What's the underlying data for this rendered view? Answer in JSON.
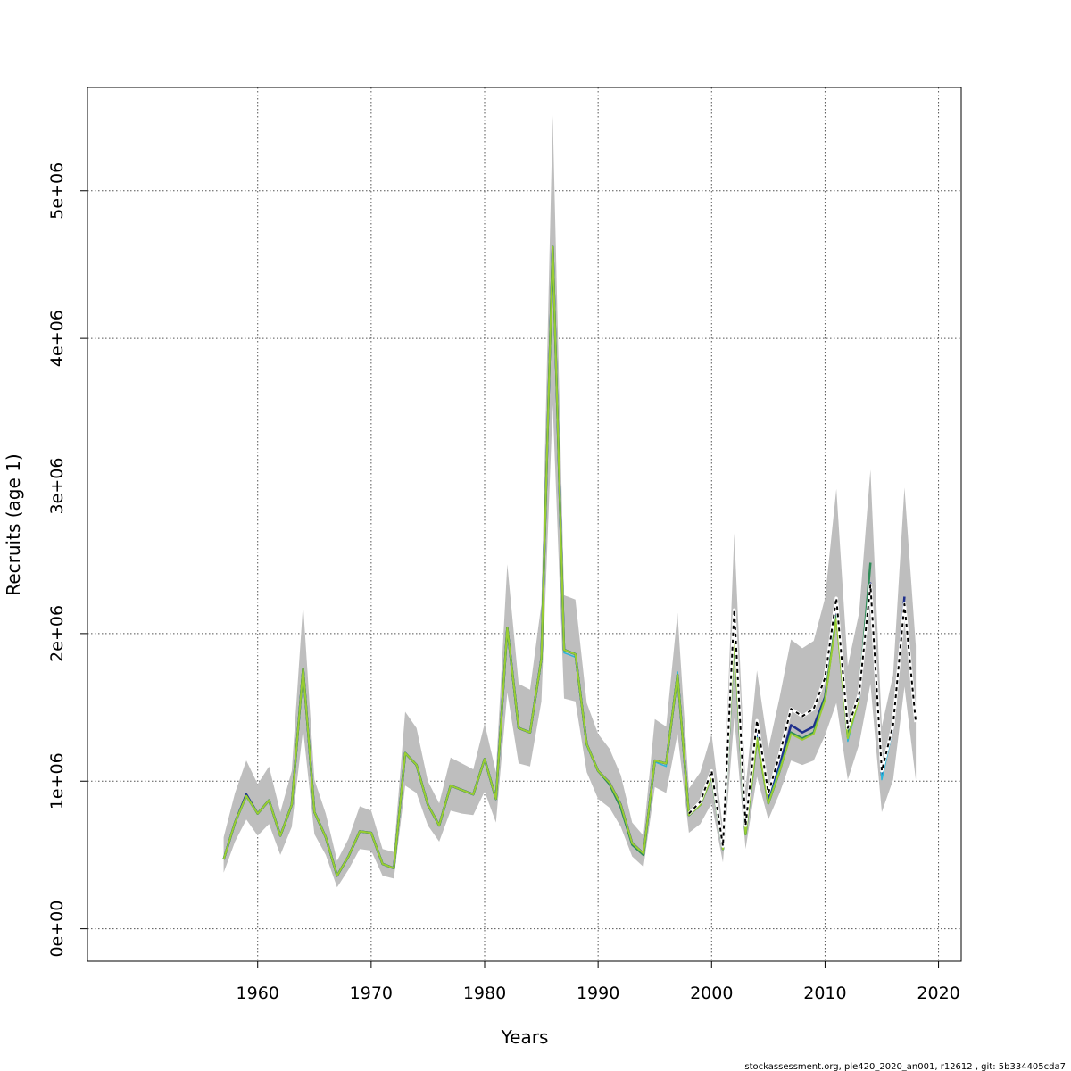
{
  "chart_data": {
    "type": "line",
    "title": "",
    "xlabel": "Years",
    "ylabel": "Recruits (age 1)",
    "xlim": [
      1945,
      2022
    ],
    "ylim": [
      -220000,
      5700000
    ],
    "grid": true,
    "x_ticks": [
      1960,
      1970,
      1980,
      1990,
      2000,
      2010,
      2020
    ],
    "x_tick_labels": [
      "1960",
      "1970",
      "1980",
      "1990",
      "2000",
      "2010",
      "2020"
    ],
    "y_ticks": [
      0,
      1000000,
      2000000,
      3000000,
      4000000,
      5000000
    ],
    "y_tick_labels": [
      "0e+00",
      "1e+06",
      "2e+06",
      "3e+06",
      "4e+06",
      "5e+06"
    ],
    "band": {
      "color": "#bebebe",
      "x": [
        1957,
        1958,
        1959,
        1960,
        1961,
        1962,
        1963,
        1964,
        1965,
        1966,
        1967,
        1968,
        1969,
        1970,
        1971,
        1972,
        1973,
        1974,
        1975,
        1976,
        1977,
        1978,
        1979,
        1980,
        1981,
        1982,
        1983,
        1984,
        1985,
        1986,
        1987,
        1988,
        1989,
        1990,
        1991,
        1992,
        1993,
        1994,
        1995,
        1996,
        1997,
        1998,
        1999,
        2000,
        2001,
        2002,
        2003,
        2004,
        2005,
        2006,
        2007,
        2008,
        2009,
        2010,
        2011,
        2012,
        2013,
        2014,
        2015,
        2016,
        2017,
        2018
      ],
      "lower": [
        380000,
        590000,
        740000,
        630000,
        710000,
        500000,
        690000,
        1350000,
        640000,
        500000,
        280000,
        400000,
        540000,
        530000,
        360000,
        340000,
        970000,
        920000,
        700000,
        590000,
        800000,
        780000,
        770000,
        930000,
        720000,
        1600000,
        1120000,
        1100000,
        1540000,
        3550000,
        1560000,
        1540000,
        1060000,
        880000,
        820000,
        690000,
        490000,
        420000,
        960000,
        920000,
        1320000,
        650000,
        710000,
        850000,
        450000,
        1430000,
        540000,
        1030000,
        740000,
        920000,
        1140000,
        1110000,
        1140000,
        1310000,
        1530000,
        1010000,
        1250000,
        1660000,
        790000,
        1010000,
        1640000,
        1010000
      ],
      "upper": [
        620000,
        920000,
        1140000,
        980000,
        1100000,
        790000,
        1070000,
        2200000,
        1010000,
        780000,
        460000,
        610000,
        830000,
        800000,
        540000,
        520000,
        1470000,
        1360000,
        1000000,
        850000,
        1160000,
        1120000,
        1080000,
        1390000,
        1060000,
        2470000,
        1660000,
        1620000,
        2200000,
        5510000,
        2260000,
        2230000,
        1530000,
        1320000,
        1220000,
        1040000,
        720000,
        630000,
        1420000,
        1370000,
        2140000,
        950000,
        1060000,
        1320000,
        680000,
        2680000,
        950000,
        1750000,
        1220000,
        1570000,
        1960000,
        1900000,
        1950000,
        2240000,
        2980000,
        1780000,
        2140000,
        3110000,
        1370000,
        1720000,
        2990000,
        1920000
      ]
    },
    "series": [
      {
        "color": "#1e2f8c",
        "width": 2.5,
        "dashed": false,
        "x": [
          1957,
          1958,
          1959,
          1960,
          1961,
          1962,
          1963,
          1964,
          1965,
          1966,
          1967,
          1968,
          1969,
          1970,
          1971,
          1972,
          1973,
          1974,
          1975,
          1976,
          1977,
          1978,
          1979,
          1980,
          1981,
          1982,
          1983,
          1984,
          1985,
          1986,
          1987,
          1988,
          1989,
          1990,
          1991,
          1992,
          1993,
          1994,
          1995,
          1996,
          1997,
          1998,
          1999,
          2000,
          2001,
          2002,
          2003,
          2004,
          2005,
          2006,
          2007,
          2008,
          2009,
          2010,
          2011,
          2012,
          2013,
          2014,
          2015,
          2016,
          2017
        ],
        "y": [
          470000,
          720000,
          910000,
          780000,
          870000,
          630000,
          840000,
          1760000,
          790000,
          620000,
          360000,
          490000,
          660000,
          650000,
          440000,
          410000,
          1190000,
          1110000,
          840000,
          700000,
          970000,
          940000,
          910000,
          1150000,
          880000,
          2040000,
          1360000,
          1330000,
          1830000,
          4620000,
          1890000,
          1860000,
          1250000,
          1070000,
          990000,
          840000,
          580000,
          510000,
          1140000,
          1120000,
          1720000,
          770000,
          850000,
          1060000,
          540000,
          2040000,
          650000,
          1340000,
          870000,
          1110000,
          1380000,
          1330000,
          1370000,
          1570000,
          2130000,
          1330000,
          1580000,
          2340000,
          1040000,
          1370000,
          2250000
        ]
      },
      {
        "color": "#29b6d9",
        "width": 1.5,
        "dashed": false,
        "x": [
          1957,
          1958,
          1959,
          1960,
          1961,
          1962,
          1963,
          1964,
          1965,
          1966,
          1967,
          1968,
          1969,
          1970,
          1971,
          1972,
          1973,
          1974,
          1975,
          1976,
          1977,
          1978,
          1979,
          1980,
          1981,
          1982,
          1983,
          1984,
          1985,
          1986,
          1987,
          1988,
          1989,
          1990,
          1991,
          1992,
          1993,
          1994,
          1995,
          1996,
          1997,
          1998,
          1999,
          2000,
          2001,
          2002,
          2003,
          2004,
          2005,
          2006,
          2007,
          2008,
          2009,
          2010,
          2011,
          2012,
          2013,
          2014,
          2015,
          2016
        ],
        "y": [
          470000,
          720000,
          900000,
          780000,
          870000,
          630000,
          840000,
          1760000,
          790000,
          620000,
          360000,
          490000,
          660000,
          650000,
          440000,
          410000,
          1190000,
          1110000,
          840000,
          700000,
          970000,
          940000,
          910000,
          1150000,
          880000,
          2040000,
          1360000,
          1330000,
          1830000,
          4620000,
          1870000,
          1840000,
          1240000,
          1070000,
          990000,
          830000,
          580000,
          510000,
          1130000,
          1100000,
          1740000,
          770000,
          840000,
          1040000,
          540000,
          1980000,
          640000,
          1300000,
          860000,
          1090000,
          1330000,
          1290000,
          1330000,
          1550000,
          2100000,
          1270000,
          1560000,
          2280000,
          1010000,
          1360000
        ]
      },
      {
        "color": "#2e8b57",
        "width": 2.5,
        "dashed": false,
        "x": [
          1957,
          1958,
          1959,
          1960,
          1961,
          1962,
          1963,
          1964,
          1965,
          1966,
          1967,
          1968,
          1969,
          1970,
          1971,
          1972,
          1973,
          1974,
          1975,
          1976,
          1977,
          1978,
          1979,
          1980,
          1981,
          1982,
          1983,
          1984,
          1985,
          1986,
          1987,
          1988,
          1989,
          1990,
          1991,
          1992,
          1993,
          1994,
          1995,
          1996,
          1997,
          1998,
          1999,
          2000,
          2001,
          2002,
          2003,
          2004,
          2005,
          2006,
          2007,
          2008,
          2009,
          2010,
          2011,
          2012,
          2013,
          2014
        ],
        "y": [
          470000,
          720000,
          900000,
          780000,
          870000,
          630000,
          840000,
          1760000,
          790000,
          620000,
          360000,
          490000,
          660000,
          650000,
          440000,
          410000,
          1190000,
          1110000,
          840000,
          700000,
          970000,
          940000,
          910000,
          1150000,
          880000,
          2040000,
          1360000,
          1330000,
          1830000,
          4620000,
          1890000,
          1860000,
          1250000,
          1070000,
          980000,
          820000,
          570000,
          500000,
          1140000,
          1120000,
          1720000,
          770000,
          840000,
          1030000,
          540000,
          1980000,
          640000,
          1290000,
          850000,
          1070000,
          1330000,
          1290000,
          1330000,
          1560000,
          2120000,
          1300000,
          1590000,
          2480000
        ]
      },
      {
        "color": "#9acd32",
        "width": 2,
        "dashed": false,
        "x": [
          1957,
          1958,
          1959,
          1960,
          1961,
          1962,
          1963,
          1964,
          1965,
          1966,
          1967,
          1968,
          1969,
          1970,
          1971,
          1972,
          1973,
          1974,
          1975,
          1976,
          1977,
          1978,
          1979,
          1980,
          1981,
          1982,
          1983,
          1984,
          1985,
          1986,
          1987,
          1988,
          1989,
          1990,
          1991,
          1992,
          1993,
          1994,
          1995,
          1996,
          1997,
          1998,
          1999,
          2000,
          2001,
          2002,
          2003,
          2004,
          2005,
          2006,
          2007,
          2008,
          2009,
          2010,
          2011,
          2012,
          2013
        ],
        "y": [
          470000,
          720000,
          900000,
          780000,
          870000,
          630000,
          840000,
          1760000,
          790000,
          620000,
          360000,
          490000,
          660000,
          650000,
          440000,
          410000,
          1190000,
          1110000,
          840000,
          700000,
          970000,
          940000,
          910000,
          1150000,
          880000,
          2040000,
          1360000,
          1330000,
          1830000,
          4620000,
          1890000,
          1860000,
          1250000,
          1070000,
          990000,
          840000,
          580000,
          510000,
          1140000,
          1120000,
          1720000,
          770000,
          840000,
          1030000,
          540000,
          1980000,
          640000,
          1290000,
          850000,
          1070000,
          1320000,
          1280000,
          1320000,
          1550000,
          2100000,
          1290000,
          1560000
        ]
      },
      {
        "color": "#000000",
        "width": 2,
        "dashed": true,
        "x": [
          1998,
          1999,
          2000,
          2001,
          2002,
          2003,
          2004,
          2005,
          2006,
          2007,
          2008,
          2009,
          2010,
          2011,
          2012,
          2013,
          2014,
          2015,
          2016,
          2017,
          2018
        ],
        "y": [
          780000,
          860000,
          1070000,
          560000,
          2160000,
          700000,
          1410000,
          920000,
          1180000,
          1490000,
          1440000,
          1490000,
          1700000,
          2240000,
          1360000,
          1590000,
          2330000,
          1070000,
          1380000,
          2200000,
          1400000
        ]
      }
    ]
  },
  "footer": "stockassessment.org, ple420_2020_an001, r12612 , git: 5b334405cda7"
}
